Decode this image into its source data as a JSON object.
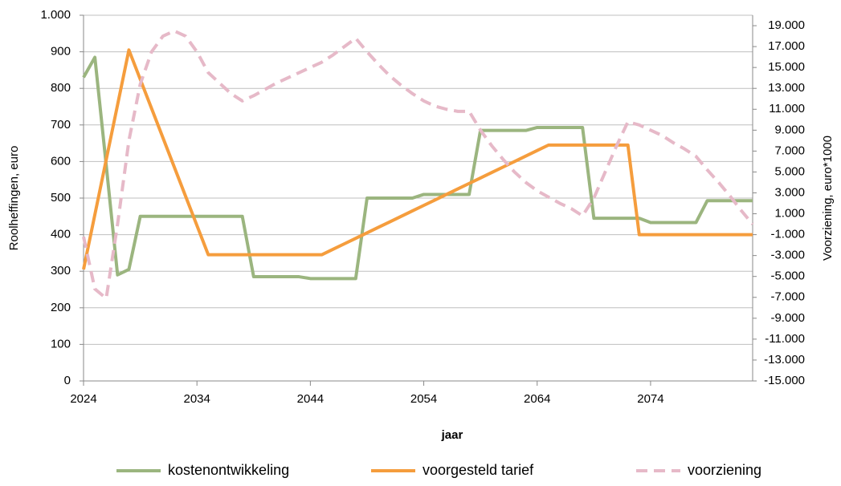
{
  "chart_data": {
    "type": "line",
    "x_label": "jaar",
    "y_label": "Roolheffingen, euro",
    "y2_label": "Voorziening, euro*1000",
    "x": [
      2024,
      2025,
      2026,
      2027,
      2028,
      2029,
      2030,
      2031,
      2032,
      2033,
      2034,
      2035,
      2036,
      2037,
      2038,
      2039,
      2040,
      2041,
      2042,
      2043,
      2044,
      2045,
      2046,
      2047,
      2048,
      2049,
      2050,
      2051,
      2052,
      2053,
      2054,
      2055,
      2056,
      2057,
      2058,
      2059,
      2060,
      2061,
      2062,
      2063,
      2064,
      2065,
      2066,
      2067,
      2068,
      2069,
      2070,
      2071,
      2072,
      2073,
      2074,
      2075,
      2076,
      2077,
      2078,
      2079,
      2080,
      2081,
      2082,
      2083
    ],
    "xlim": [
      2024,
      2083
    ],
    "xticks": [
      2024,
      2034,
      2044,
      2054,
      2064,
      2074
    ],
    "ylim": [
      0,
      1000
    ],
    "yticks": [
      0,
      100,
      200,
      300,
      400,
      500,
      600,
      700,
      800,
      900,
      {
        "value": 1000,
        "label": "1.000"
      }
    ],
    "y2lim": [
      -15000,
      20000
    ],
    "y2ticks": [
      {
        "value": -15000,
        "label": "-15.000"
      },
      {
        "value": -13000,
        "label": "-13.000"
      },
      {
        "value": -11000,
        "label": "-11.000"
      },
      {
        "value": -9000,
        "label": "-9.000"
      },
      {
        "value": -7000,
        "label": "-7.000"
      },
      {
        "value": -5000,
        "label": "-5.000"
      },
      {
        "value": -3000,
        "label": "-3.000"
      },
      {
        "value": -1000,
        "label": "-1.000"
      },
      {
        "value": 1000,
        "label": "1.000"
      },
      {
        "value": 3000,
        "label": "3.000"
      },
      {
        "value": 5000,
        "label": "5.000"
      },
      {
        "value": 7000,
        "label": "7.000"
      },
      {
        "value": 9000,
        "label": "9.000"
      },
      {
        "value": 11000,
        "label": "11.000"
      },
      {
        "value": 13000,
        "label": "13.000"
      },
      {
        "value": 15000,
        "label": "15.000"
      },
      {
        "value": 17000,
        "label": "17.000"
      },
      {
        "value": 19000,
        "label": "19.000"
      }
    ],
    "grid": true,
    "legend": "bottom",
    "series": [
      {
        "name": "kostenontwikkeling",
        "color": "#9bb57f",
        "style": "solid",
        "values": [
          830,
          885,
          590,
          290,
          305,
          450,
          450,
          450,
          450,
          450,
          450,
          450,
          450,
          450,
          450,
          285,
          285,
          285,
          285,
          285,
          280,
          280,
          280,
          280,
          280,
          500,
          500,
          500,
          500,
          500,
          510,
          510,
          510,
          510,
          510,
          685,
          685,
          685,
          685,
          685,
          693,
          693,
          693,
          693,
          693,
          445,
          445,
          445,
          445,
          445,
          433,
          433,
          433,
          433,
          433,
          493,
          493,
          493,
          493,
          493
        ]
      },
      {
        "name": "voorgesteld tarief",
        "color": "#f59d3d",
        "style": "solid",
        "values": [
          305,
          455,
          605,
          755,
          905,
          825,
          745,
          665,
          585,
          505,
          425,
          345,
          345,
          345,
          345,
          345,
          345,
          345,
          345,
          345,
          345,
          345,
          360,
          375,
          390,
          405,
          420,
          435,
          450,
          465,
          480,
          495,
          510,
          525,
          540,
          555,
          570,
          585,
          600,
          615,
          630,
          645,
          645,
          645,
          645,
          645,
          645,
          645,
          645,
          400,
          400,
          400,
          400,
          400,
          400,
          400,
          400,
          400,
          400,
          400
        ]
      },
      {
        "name": "voorziening",
        "color": "#e6b9c8",
        "style": "dashed",
        "axis": "y2",
        "values": [
          -1200,
          -6200,
          -7100,
          0,
          8000,
          13400,
          16500,
          18000,
          18500,
          18000,
          16500,
          14500,
          13500,
          12500,
          11800,
          12300,
          12900,
          13500,
          14000,
          14500,
          15000,
          15500,
          16200,
          17000,
          17800,
          16500,
          15300,
          14200,
          13300,
          12500,
          11800,
          11300,
          11000,
          10800,
          10800,
          9000,
          7500,
          6200,
          5000,
          4000,
          3200,
          2600,
          2000,
          1500,
          800,
          2500,
          5000,
          7500,
          9800,
          9500,
          9000,
          8500,
          7800,
          7200,
          6500,
          5200,
          4000,
          2700,
          1300,
          0
        ]
      }
    ]
  }
}
